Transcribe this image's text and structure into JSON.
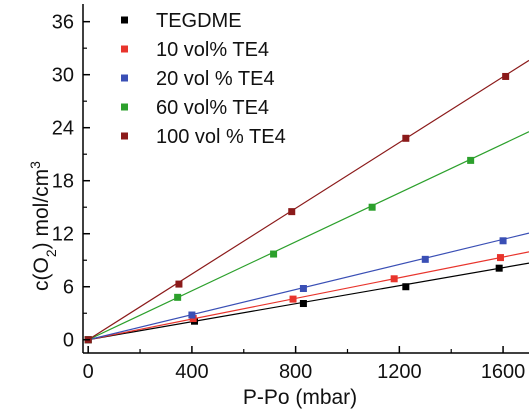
{
  "chart_data": {
    "type": "scatter",
    "title": "",
    "xlabel": "P-Po (mbar)",
    "ylabel_parts": [
      "c(O",
      "2",
      ") mol/cm",
      "3"
    ],
    "xlim": [
      -20,
      1700
    ],
    "ylim": [
      -1.5,
      38
    ],
    "xticks": [
      0,
      400,
      800,
      1200,
      1600
    ],
    "yticks": [
      0,
      6,
      12,
      18,
      24,
      30,
      36
    ],
    "grid": false,
    "legend": "top-left",
    "series": [
      {
        "name": "TEGDME",
        "color": "#000000",
        "points": [
          [
            0,
            0
          ],
          [
            410,
            2.1
          ],
          [
            830,
            4.1
          ],
          [
            1225,
            6.0
          ],
          [
            1585,
            8.1
          ]
        ],
        "fit_slope": 0.0051
      },
      {
        "name": "10 vol% TE4",
        "color": "#e8342c",
        "points": [
          [
            0,
            0
          ],
          [
            405,
            2.4
          ],
          [
            790,
            4.6
          ],
          [
            1180,
            6.9
          ],
          [
            1590,
            9.3
          ]
        ],
        "fit_slope": 0.00585
      },
      {
        "name": "20 vol % TE4",
        "color": "#3a4fb5",
        "points": [
          [
            0,
            0
          ],
          [
            400,
            2.8
          ],
          [
            830,
            5.8
          ],
          [
            1300,
            9.1
          ],
          [
            1600,
            11.2
          ]
        ],
        "fit_slope": 0.0071
      },
      {
        "name": "60 vol% TE4",
        "color": "#2ca02c",
        "points": [
          [
            0,
            0
          ],
          [
            345,
            4.8
          ],
          [
            715,
            9.7
          ],
          [
            1095,
            15.0
          ],
          [
            1475,
            20.3
          ]
        ],
        "fit_slope": 0.01385
      },
      {
        "name": "100 vol % TE4",
        "color": "#8b1a1a",
        "points": [
          [
            0,
            0
          ],
          [
            350,
            6.3
          ],
          [
            785,
            14.5
          ],
          [
            1225,
            22.8
          ],
          [
            1610,
            29.8
          ]
        ],
        "fit_slope": 0.0186
      }
    ]
  }
}
